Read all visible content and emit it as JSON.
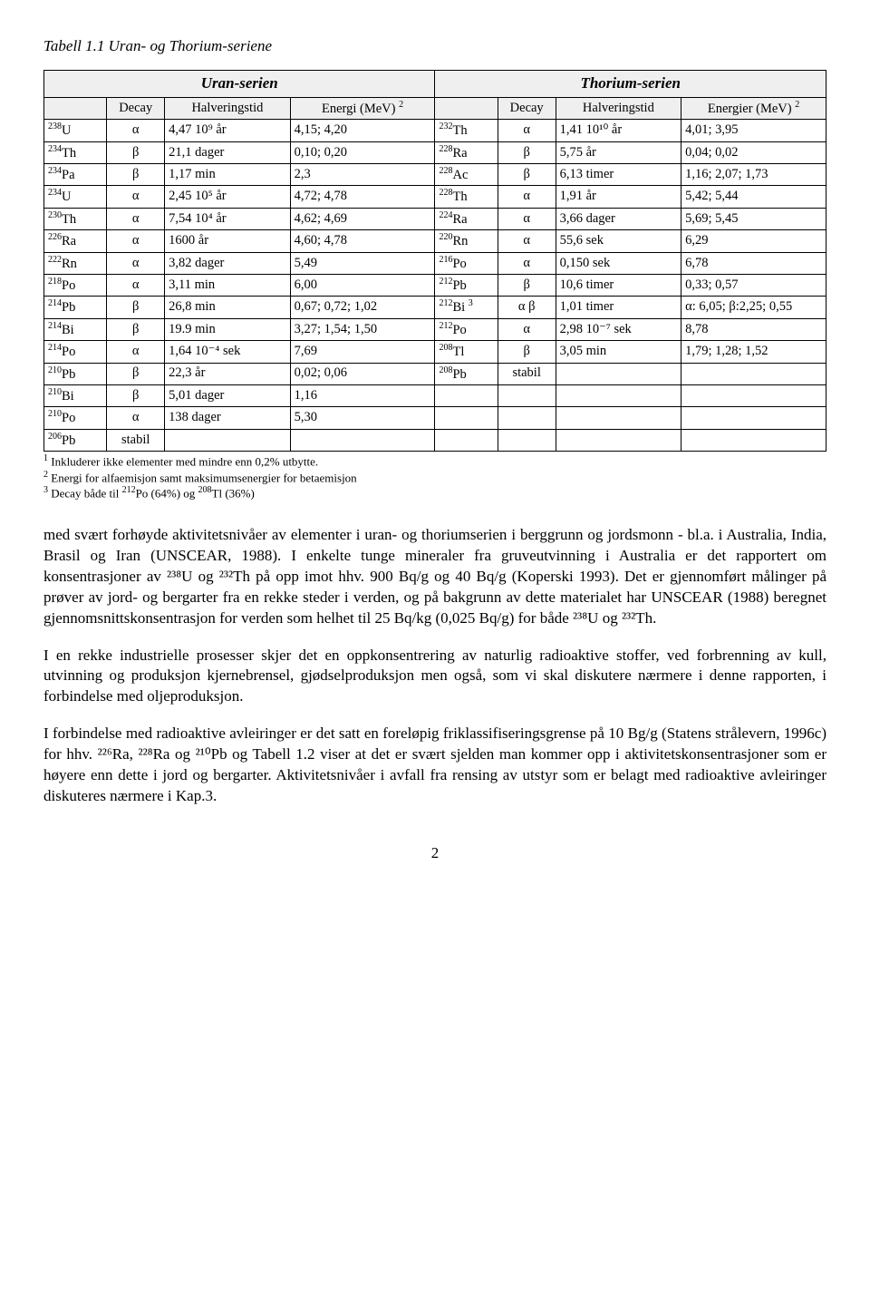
{
  "caption": "Tabell 1.1 Uran- og Thorium-seriene",
  "headers": {
    "uran": "Uran-serien",
    "thor": "Thorium-serien",
    "decay": "Decay",
    "half": "Halveringstid",
    "enU": "Energi (MeV)",
    "enT": "Energier (MeV)",
    "hdrSup": "2"
  },
  "rows": [
    {
      "u": {
        "n": "238U",
        "d": "α",
        "h": "4,47 10⁹ år",
        "e": "4,15; 4,20"
      },
      "t": {
        "n": "232Th",
        "d": "α",
        "h": "1,41 10¹⁰ år",
        "e": "4,01; 3,95"
      }
    },
    {
      "u": {
        "n": "234Th",
        "d": "β",
        "h": "21,1 dager",
        "e": "0,10; 0,20"
      },
      "t": {
        "n": "228Ra",
        "d": "β",
        "h": "5,75 år",
        "e": "0,04; 0,02"
      }
    },
    {
      "u": {
        "n": "234Pa",
        "d": "β",
        "h": "1,17 min",
        "e": "2,3"
      },
      "t": {
        "n": "228Ac",
        "d": "β",
        "h": "6,13 timer",
        "e": "1,16; 2,07; 1,73"
      }
    },
    {
      "u": {
        "n": "234U",
        "d": "α",
        "h": "2,45 10⁵ år",
        "e": "4,72; 4,78"
      },
      "t": {
        "n": "228Th",
        "d": "α",
        "h": "1,91 år",
        "e": "5,42; 5,44"
      }
    },
    {
      "u": {
        "n": "230Th",
        "d": "α",
        "h": "7,54 10⁴ år",
        "e": "4,62; 4,69"
      },
      "t": {
        "n": "224Ra",
        "d": "α",
        "h": "3,66 dager",
        "e": "5,69; 5,45"
      }
    },
    {
      "u": {
        "n": "226Ra",
        "d": "α",
        "h": "1600 år",
        "e": "4,60; 4,78"
      },
      "t": {
        "n": "220Rn",
        "d": "α",
        "h": "55,6 sek",
        "e": "6,29"
      }
    },
    {
      "u": {
        "n": "222Rn",
        "d": "α",
        "h": "3,82 dager",
        "e": "5,49"
      },
      "t": {
        "n": "216Po",
        "d": "α",
        "h": "0,150 sek",
        "e": "6,78"
      }
    },
    {
      "u": {
        "n": "218Po",
        "d": "α",
        "h": "3,11 min",
        "e": "6,00"
      },
      "t": {
        "n": "212Pb",
        "d": "β",
        "h": "10,6 timer",
        "e": "0,33; 0,57"
      }
    },
    {
      "u": {
        "n": "214Pb",
        "d": "β",
        "h": "26,8 min",
        "e": "0,67; 0,72; 1,02"
      },
      "t": {
        "n": "212Bi",
        "sup": "3",
        "d": "α β",
        "h": "1,01 timer",
        "e": "α: 6,05; β:2,25; 0,55"
      }
    },
    {
      "u": {
        "n": "214Bi",
        "d": "β",
        "h": "19.9 min",
        "e": "3,27; 1,54; 1,50"
      },
      "t": {
        "n": "212Po",
        "d": "α",
        "h": "2,98 10⁻⁷ sek",
        "e": "8,78"
      }
    },
    {
      "u": {
        "n": "214Po",
        "d": "α",
        "h": "1,64 10⁻⁴ sek",
        "e": "7,69"
      },
      "t": {
        "n": "208Tl",
        "d": "β",
        "h": "3,05 min",
        "e": "1,79; 1,28; 1,52"
      }
    },
    {
      "u": {
        "n": "210Pb",
        "d": "β",
        "h": "22,3 år",
        "e": "0,02; 0,06"
      },
      "t": {
        "n": "208Pb",
        "d": "stabil",
        "h": "",
        "e": ""
      }
    },
    {
      "u": {
        "n": "210Bi",
        "d": "β",
        "h": "5,01 dager",
        "e": "1,16"
      },
      "t": {
        "n": "",
        "d": "",
        "h": "",
        "e": ""
      }
    },
    {
      "u": {
        "n": "210Po",
        "d": "α",
        "h": "138 dager",
        "e": "5,30"
      },
      "t": {
        "n": "",
        "d": "",
        "h": "",
        "e": ""
      }
    },
    {
      "u": {
        "n": "206Pb",
        "d": "stabil",
        "h": "",
        "e": ""
      },
      "t": {
        "n": "",
        "d": "",
        "h": "",
        "e": ""
      }
    }
  ],
  "footnotes": [
    "1 Inkluderer ikke elementer med mindre enn 0,2% utbytte.",
    "2 Energi for alfaemisjon samt maksimumsenergier for betaemisjon",
    "3 Decay både til 212Po (64%) og 208Tl (36%)"
  ],
  "paras": [
    "med svært forhøyde aktivitetsnivåer av elementer i uran- og thoriumserien i berggrunn og jordsmonn - bl.a. i Australia, India, Brasil og Iran (UNSCEAR, 1988). I enkelte tunge mineraler fra gruveutvinning i Australia er det rapportert om konsentrasjoner av ²³⁸U og ²³²Th på opp imot hhv. 900 Bq/g og 40 Bq/g (Koperski 1993). Det er gjennomført målinger på prøver av jord- og bergarter fra en rekke steder i verden, og på bakgrunn av dette materialet har UNSCEAR (1988) beregnet gjennomsnittskonsentrasjon for verden som helhet til 25 Bq/kg (0,025 Bq/g) for både ²³⁸U og ²³²Th.",
    "I en rekke industrielle prosesser skjer det en oppkonsentrering av naturlig radioaktive stoffer, ved forbrenning av kull, utvinning og produksjon kjernebrensel, gjødselproduksjon men også, som vi skal diskutere nærmere i denne rapporten, i forbindelse med oljeproduksjon.",
    "I forbindelse med radioaktive avleiringer er det satt en foreløpig friklassifiseringsgrense på 10 Bg/g (Statens strålevern, 1996c) for hhv. ²²⁶Ra, ²²⁸Ra og ²¹⁰Pb og Tabell 1.2 viser at det er svært sjelden man kommer opp i aktivitetskonsentrasjoner som er høyere enn dette i jord og bergarter. Aktivitetsnivåer i avfall fra rensing av utstyr som er belagt med radioaktive avleiringer diskuteres nærmere i Kap.3."
  ],
  "pagenum": "2"
}
